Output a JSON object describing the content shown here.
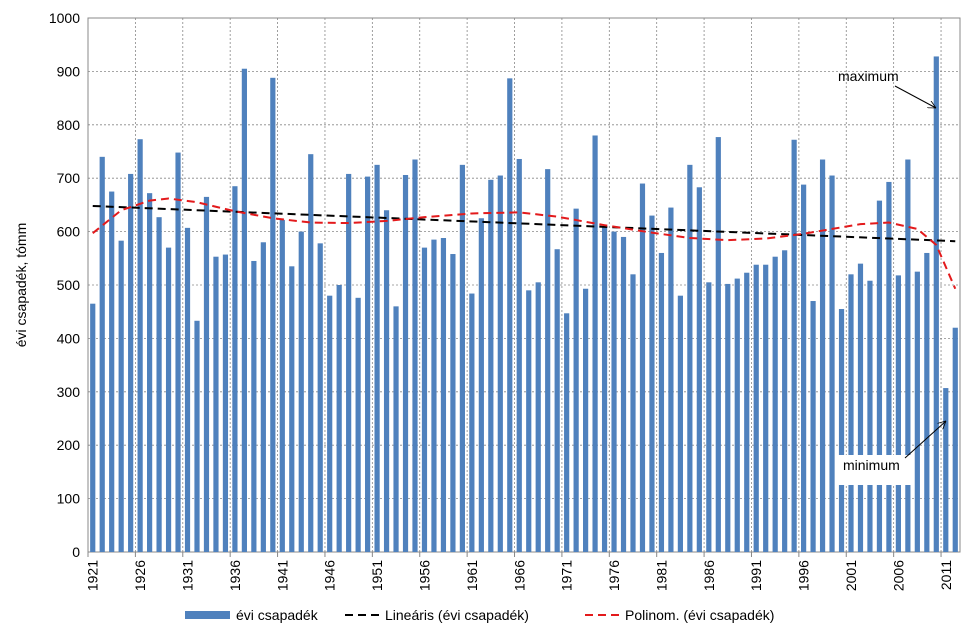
{
  "chart_data": {
    "type": "bar",
    "y_label": "évi csapadék, tómm",
    "categories": [
      "1921",
      null,
      null,
      null,
      null,
      "1926",
      null,
      null,
      null,
      null,
      "1931",
      null,
      null,
      null,
      null,
      "1936",
      null,
      null,
      null,
      null,
      "1941",
      null,
      null,
      null,
      null,
      "1946",
      null,
      null,
      null,
      null,
      "1951",
      null,
      null,
      null,
      null,
      "1956",
      null,
      null,
      null,
      null,
      "1961",
      null,
      null,
      null,
      null,
      "1966",
      null,
      null,
      null,
      null,
      "1971",
      null,
      null,
      null,
      null,
      "1976",
      null,
      null,
      null,
      null,
      "1981",
      null,
      null,
      null,
      null,
      "1986",
      null,
      null,
      null,
      null,
      "1991",
      null,
      null,
      null,
      null,
      "1996",
      null,
      null,
      null,
      null,
      "2001",
      null,
      null,
      null,
      null,
      "2006",
      null,
      null,
      null,
      null,
      "2011",
      null
    ],
    "series": [
      {
        "name": "évi csapadék",
        "color": "#4f81bd",
        "values": [
          465,
          740,
          675,
          583,
          708,
          773,
          672,
          627,
          570,
          748,
          607,
          433,
          665,
          553,
          557,
          685,
          905,
          545,
          580,
          888,
          622,
          535,
          600,
          745,
          578,
          480,
          500,
          708,
          476,
          703,
          725,
          640,
          460,
          706,
          735,
          570,
          585,
          588,
          558,
          725,
          484,
          625,
          697,
          705,
          887,
          736,
          490,
          505,
          717,
          567,
          447,
          643,
          493,
          780,
          610,
          600,
          590,
          520,
          690,
          630,
          560,
          645,
          480,
          725,
          683,
          505,
          777,
          502,
          512,
          523,
          538,
          538,
          553,
          565,
          772,
          688,
          470,
          735,
          705,
          455,
          520,
          540,
          508,
          658,
          693,
          518,
          735,
          525,
          560,
          928,
          307,
          420
        ]
      }
    ],
    "trendlines": [
      {
        "name": "Lineáris (évi csapadék)",
        "color": "#000000",
        "x": [
          1921,
          2012
        ],
        "values": [
          648,
          582
        ]
      },
      {
        "name": "Polinom. (évi csapadék)",
        "color": "#e31a1c",
        "x": [
          1921,
          1924,
          1927,
          1929,
          1932,
          1936,
          1940,
          1944,
          1948,
          1952,
          1956,
          1961,
          1966,
          1970,
          1975,
          1980,
          1984,
          1988,
          1992,
          1996,
          2000,
          2002,
          2005,
          2008,
          2010,
          2012
        ],
        "values": [
          597,
          640,
          658,
          662,
          655,
          638,
          625,
          617,
          616,
          620,
          627,
          634,
          636,
          628,
          612,
          598,
          588,
          584,
          587,
          596,
          608,
          614,
          617,
          605,
          575,
          493
        ]
      }
    ],
    "annotations": [
      "maximum",
      "minimum"
    ],
    "ylim": [
      0,
      1000
    ],
    "yticks": [
      0,
      100,
      200,
      300,
      400,
      500,
      600,
      700,
      800,
      900,
      1000
    ],
    "grid": true
  }
}
